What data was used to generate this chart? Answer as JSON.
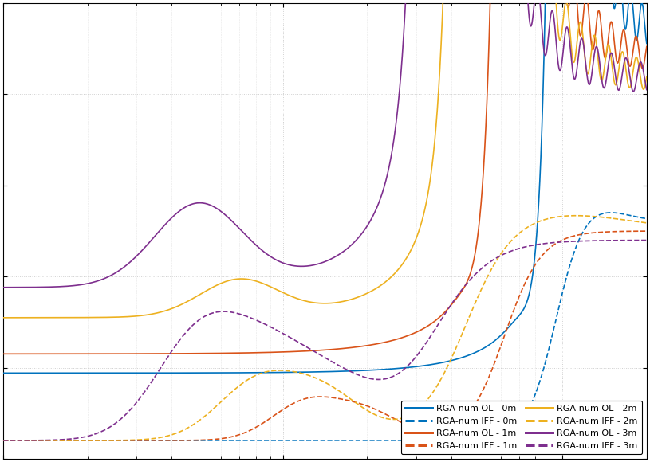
{
  "colors": {
    "0m": "#0072BD",
    "1m": "#D95319",
    "2m": "#EDB120",
    "3m": "#7E2F8E"
  },
  "legend_entries_col1": [
    {
      "label": "RGA-num OL - 0m",
      "color": "#0072BD",
      "ls": "solid"
    },
    {
      "label": "RGA-num IFF - 0m",
      "color": "#0072BD",
      "ls": "dashed"
    },
    {
      "label": "RGA-num OL - 1m",
      "color": "#D95319",
      "ls": "solid"
    },
    {
      "label": "RGA-num IFF - 1m",
      "color": "#D95319",
      "ls": "dashed"
    }
  ],
  "legend_entries_col2": [
    {
      "label": "RGA-num OL - 2m",
      "color": "#EDB120",
      "ls": "solid"
    },
    {
      "label": "RGA-num IFF - 2m",
      "color": "#EDB120",
      "ls": "dashed"
    },
    {
      "label": "RGA-num OL - 3m",
      "color": "#7E2F8E",
      "ls": "solid"
    },
    {
      "label": "RGA-num IFF - 3m",
      "color": "#7E2F8E",
      "ls": "dashed"
    }
  ],
  "xlim": [
    1,
    200
  ],
  "ylim_low": 0,
  "ylim_high": 1.0,
  "lw": 1.2,
  "legend_fontsize": 8,
  "background_color": "#ffffff",
  "grid_color": "#d0d0d0"
}
